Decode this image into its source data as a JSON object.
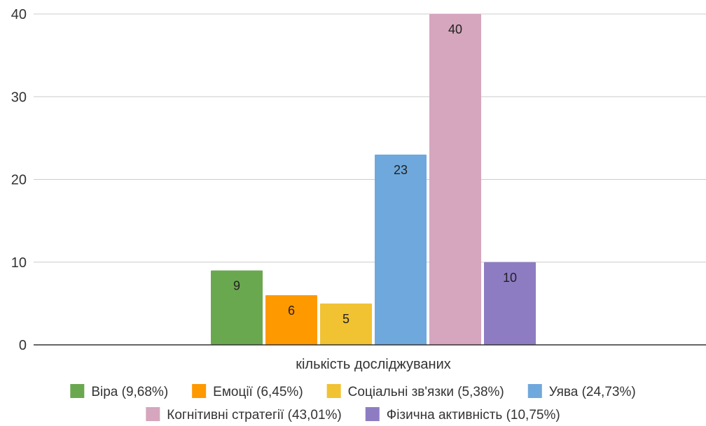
{
  "chart_data": {
    "type": "bar",
    "categories": [
      "кількість досліджуваних"
    ],
    "xlabel": "кількість досліджуваних",
    "ylabel": "",
    "ylim": [
      0,
      40
    ],
    "yticks": [
      0,
      10,
      20,
      30,
      40
    ],
    "grid": true,
    "legend_position": "bottom",
    "series": [
      {
        "name": "Віра (9,68%)",
        "values": [
          9
        ],
        "label": "9",
        "color": "#6aa84f"
      },
      {
        "name": "Емоції (6,45%)",
        "values": [
          6
        ],
        "label": "6",
        "color": "#ff9900"
      },
      {
        "name": "Соціальні зв'язки  (5,38%)",
        "values": [
          5
        ],
        "label": "5",
        "color": "#f1c232"
      },
      {
        "name": "Уява (24,73%)",
        "values": [
          23
        ],
        "label": "23",
        "color": "#6fa8dc"
      },
      {
        "name": "Когнітивні стратегії  (43,01%)",
        "values": [
          40
        ],
        "label": "40",
        "color": "#d5a6bd"
      },
      {
        "name": "Фізична активність  (10,75%)",
        "values": [
          10
        ],
        "label": "10",
        "color": "#8e7cc3"
      }
    ]
  }
}
